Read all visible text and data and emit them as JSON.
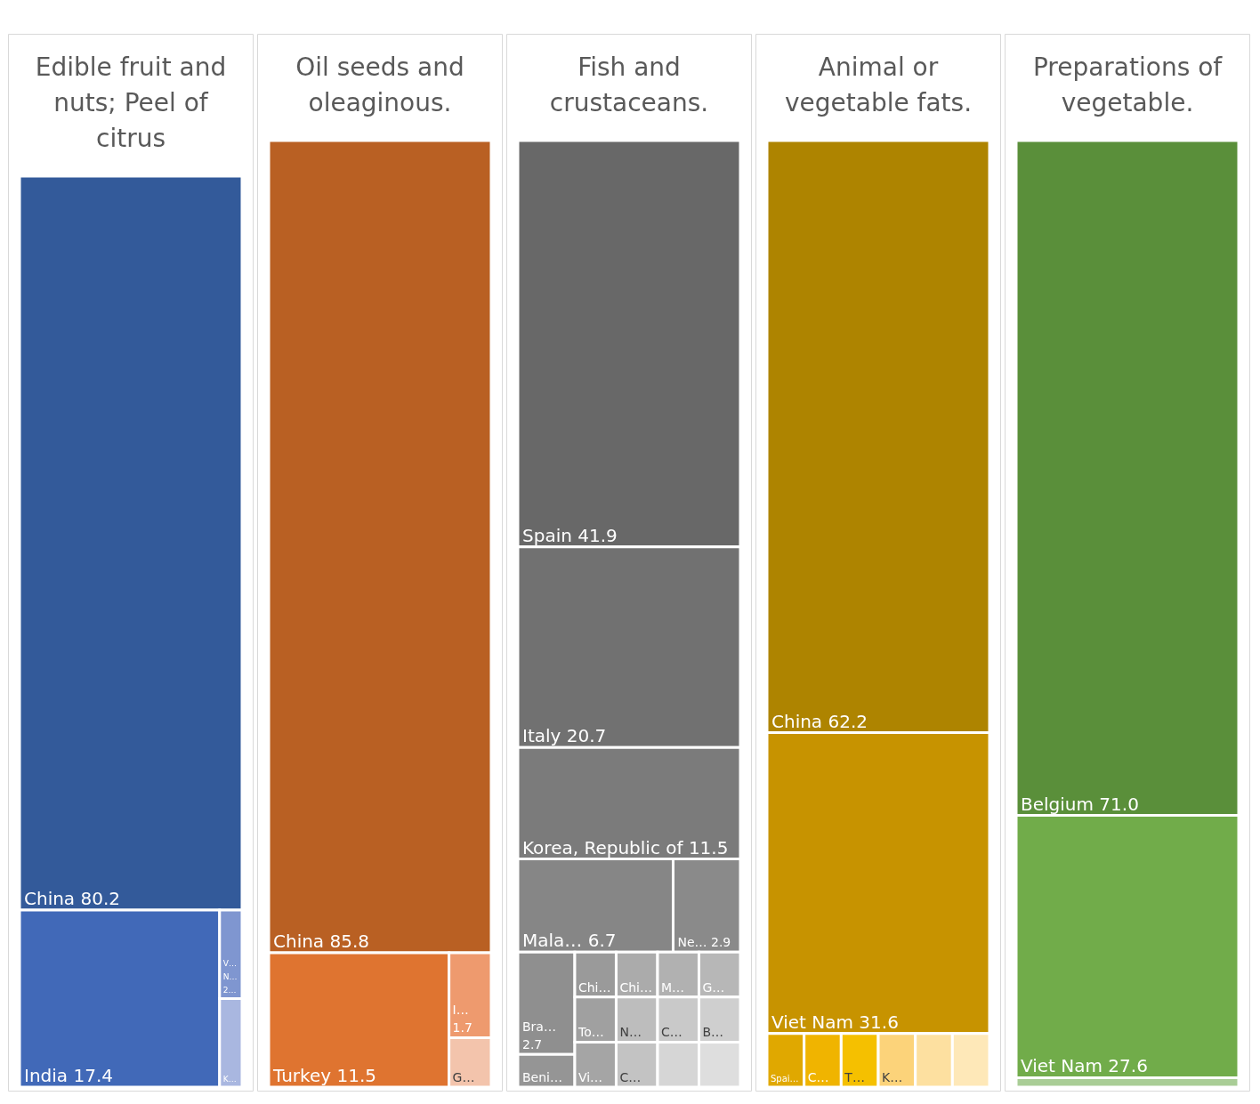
{
  "chart_data": [
    {
      "type": "other",
      "title": "Edible fruit and nuts; Peel of citrus",
      "categories": [
        "China",
        "India",
        "V… N…",
        "K…"
      ],
      "values": [
        80.2,
        17.4,
        null,
        null
      ],
      "value_labels": [
        "80.2",
        "17.4",
        "2…",
        null
      ],
      "colors": [
        "#335a9a",
        "#4169b8",
        "#7f96d0",
        "#a9b7e0"
      ]
    },
    {
      "type": "other",
      "title": "Oil seeds and oleaginous.",
      "categories": [
        "China",
        "Turkey",
        "I…",
        "G…"
      ],
      "values": [
        85.8,
        11.5,
        1.7,
        null
      ],
      "value_labels": [
        "85.8",
        "11.5",
        "1.7",
        null
      ],
      "colors": [
        "#b96023",
        "#df7430",
        "#ee9a6e",
        "#f3c4ac"
      ]
    },
    {
      "type": "other",
      "title": "Fish and crustaceans.",
      "categories": [
        "Spain",
        "Italy",
        "Korea, Republic of",
        "Mala…",
        "Ne…",
        "Bra…",
        "Beni…",
        "Chi…",
        "To…",
        "Vi…",
        "Chi…",
        "M…",
        "G…",
        "N…",
        "C…",
        "C…",
        "B…",
        null,
        null
      ],
      "values": [
        41.9,
        20.7,
        11.5,
        6.7,
        2.9,
        2.7,
        null,
        null,
        null,
        null,
        null,
        null,
        null,
        null,
        null,
        null,
        null,
        null,
        null
      ],
      "value_labels": [
        "41.9",
        "20.7",
        "11.5",
        "6.7",
        "2.9",
        "2.7",
        null,
        null,
        null,
        null,
        null,
        null,
        null,
        null,
        null,
        null,
        null,
        null,
        null
      ],
      "colors": [
        "#686868",
        "#717171",
        "#7b7b7b",
        "#868686",
        "#8a8a8a",
        "#8f8f8f",
        "#959595",
        "#9a9a9a",
        "#a0a0a0",
        "#a5a5a5",
        "#ababab",
        "#b1b1b1",
        "#b7b7b7",
        "#bdbdbd",
        "#c3c3c3",
        "#c9c9c9",
        "#cfcfcf",
        "#d6d6d6",
        "#dedede"
      ]
    },
    {
      "type": "other",
      "title": "Animal or vegetable fats.",
      "categories": [
        "China",
        "Viet Nam",
        "Spai…",
        "C…",
        "T…",
        "K…",
        null,
        null
      ],
      "values": [
        62.2,
        31.6,
        null,
        null,
        null,
        null,
        null,
        null
      ],
      "value_labels": [
        "62.2",
        "31.6",
        null,
        null,
        null,
        null,
        null,
        null
      ],
      "colors": [
        "#ae8400",
        "#c79300",
        "#e0a800",
        "#f0b400",
        "#f5c000",
        "#fcd37a",
        "#fde0a0",
        "#fee8b8"
      ]
    },
    {
      "type": "other",
      "title": "Preparations of vegetable.",
      "categories": [
        "Belgium",
        "Viet Nam",
        null
      ],
      "values": [
        71.0,
        27.6,
        null
      ],
      "value_labels": [
        "71.0",
        "27.6",
        null
      ],
      "colors": [
        "#5a8f3a",
        "#71ac4a",
        "#a9cd96"
      ]
    }
  ]
}
